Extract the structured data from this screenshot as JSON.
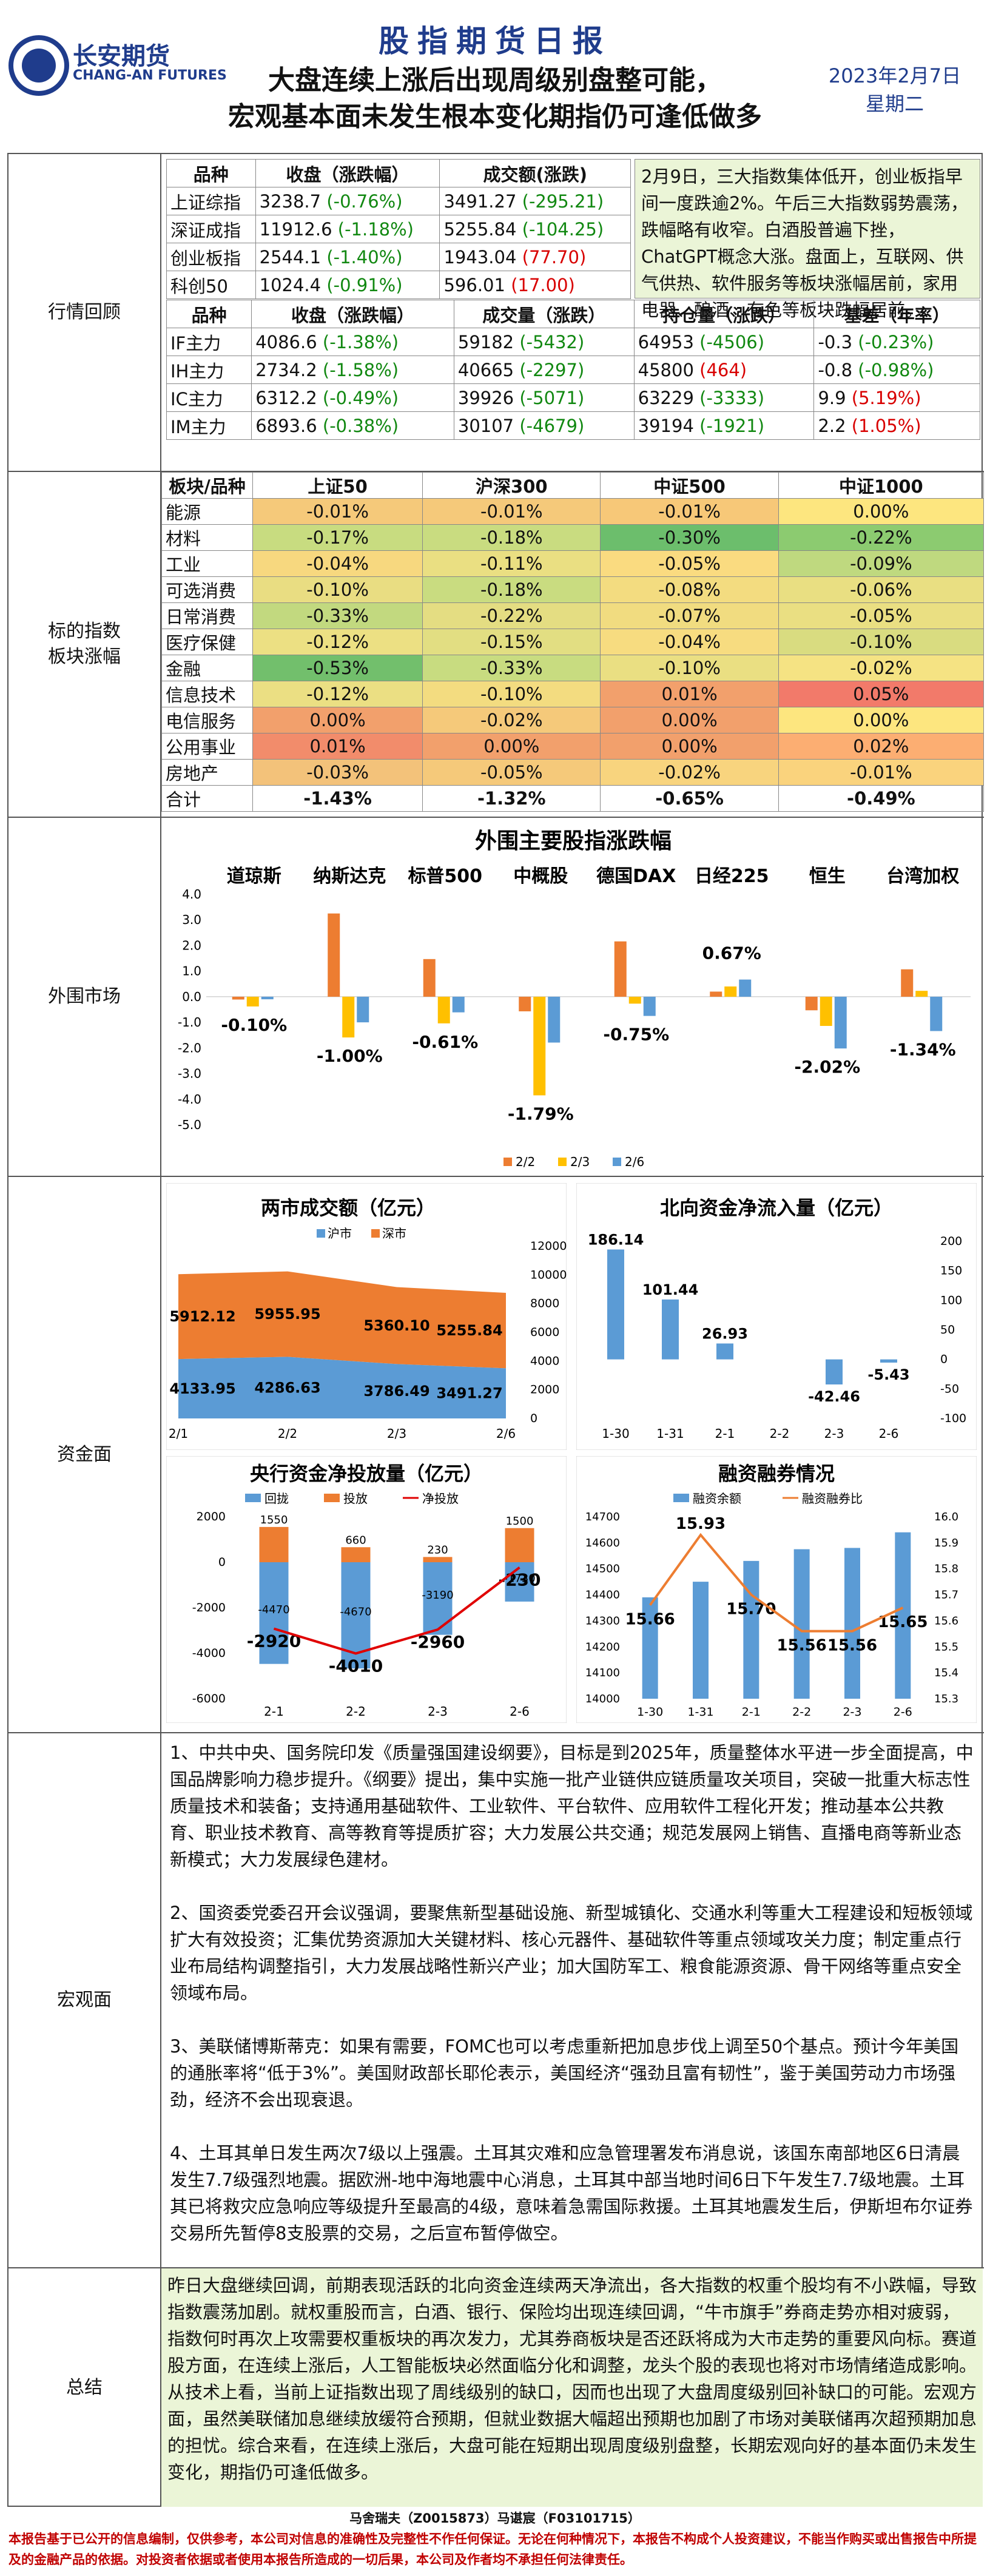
{
  "header": {
    "logo_cn": "长安期货",
    "logo_en": "CHANG-AN FUTURES",
    "report_title": "股指期货日报",
    "headline1": "大盘连续上涨后出现周级别盘整可能，",
    "headline2": "宏观基本面未发生根本变化期指仍可逢低做多",
    "date": "2023年2月7日",
    "weekday": "星期二"
  },
  "labels": {
    "review": "行情回顾",
    "sector": "标的指数\n板块涨幅",
    "foreign": "外围市场",
    "funds": "资金面",
    "macro": "宏观面",
    "summary": "总结"
  },
  "index_table": {
    "headers": [
      "品种",
      "收盘（涨跌幅）",
      "成交额(涨跌)"
    ],
    "rows": [
      [
        "上证综指",
        "3238.7",
        "(-0.76%)",
        "3491.27",
        "(-295.21)",
        "grn",
        "grn"
      ],
      [
        "深证成指",
        "11912.6",
        "(-1.18%)",
        "5255.84",
        "(-104.25)",
        "grn",
        "grn"
      ],
      [
        "创业板指",
        "2544.1",
        "(-1.40%)",
        "1943.04",
        "(77.70)",
        "grn",
        "red"
      ],
      [
        "科创50",
        "1024.4",
        "(-0.91%)",
        "596.01",
        "(17.00)",
        "grn",
        "red"
      ]
    ]
  },
  "review_text": "2月9日，三大指数集体低开，创业板指早间一度跌逾2%。午后三大指数弱势震荡，跌幅略有收窄。白酒股普遍下挫，ChatGPT概念大涨。盘面上，互联网、供气供热、软件服务等板块涨幅居前，家用电器、酿酒、有色等板块跌幅居前。",
  "futures_table": {
    "headers": [
      "品种",
      "收盘（涨跌幅）",
      "成交量（涨跌）",
      "持仓量（涨跌）",
      "基差（年率）"
    ],
    "rows": [
      [
        "IF主力",
        "4086.6",
        "(-1.38%)",
        "59182",
        "(-5432)",
        "64953",
        "(-4506)",
        "-0.3",
        "(-0.23%)",
        "grn",
        "grn",
        "grn",
        "grn"
      ],
      [
        "IH主力",
        "2734.2",
        "(-1.58%)",
        "40665",
        "(-2297)",
        "45800",
        "(464)",
        "-0.8",
        "(-0.98%)",
        "grn",
        "grn",
        "red",
        "grn"
      ],
      [
        "IC主力",
        "6312.2",
        "(-0.49%)",
        "39926",
        "(-5071)",
        "63229",
        "(-3333)",
        "9.9",
        "(5.19%)",
        "grn",
        "grn",
        "grn",
        "red"
      ],
      [
        "IM主力",
        "6893.6",
        "(-0.38%)",
        "30107",
        "(-4679)",
        "39194",
        "(-1921)",
        "2.2",
        "(1.05%)",
        "grn",
        "grn",
        "grn",
        "red"
      ]
    ]
  },
  "sector_table": {
    "headers": [
      "板块/品种",
      "上证50",
      "沪深300",
      "中证500",
      "中证1000"
    ],
    "rows": [
      [
        "能源",
        "-0.01%",
        "-0.01%",
        "-0.01%",
        "0.00%"
      ],
      [
        "材料",
        "-0.17%",
        "-0.18%",
        "-0.30%",
        "-0.22%"
      ],
      [
        "工业",
        "-0.04%",
        "-0.11%",
        "-0.05%",
        "-0.09%"
      ],
      [
        "可选消费",
        "-0.10%",
        "-0.18%",
        "-0.08%",
        "-0.06%"
      ],
      [
        "日常消费",
        "-0.33%",
        "-0.22%",
        "-0.07%",
        "-0.05%"
      ],
      [
        "医疗保健",
        "-0.12%",
        "-0.15%",
        "-0.04%",
        "-0.10%"
      ],
      [
        "金融",
        "-0.53%",
        "-0.33%",
        "-0.10%",
        "-0.02%"
      ],
      [
        "信息技术",
        "-0.12%",
        "-0.10%",
        "0.01%",
        "0.05%"
      ],
      [
        "电信服务",
        "0.00%",
        "-0.02%",
        "0.00%",
        "0.00%"
      ],
      [
        "公用事业",
        "0.01%",
        "0.00%",
        "0.00%",
        "0.02%"
      ],
      [
        "房地产",
        "-0.03%",
        "-0.05%",
        "-0.02%",
        "-0.01%"
      ]
    ],
    "total": [
      "合计",
      "-1.43%",
      "-1.32%",
      "-0.65%",
      "-0.49%"
    ],
    "colors": [
      [
        "#f5c97a",
        "#f5c97a",
        "#f7c878",
        "#fde67f"
      ],
      [
        "#c8dc80",
        "#c9dc80",
        "#6cbe6c",
        "#8ccb70"
      ],
      [
        "#f7d87f",
        "#eadf82",
        "#fadb80",
        "#bfd97f"
      ],
      [
        "#e9dd82",
        "#c9dc80",
        "#f3dc80",
        "#e9df82"
      ],
      [
        "#c2d97f",
        "#e4dd82",
        "#f1dc80",
        "#eadf82"
      ],
      [
        "#ece083",
        "#e2de82",
        "#f7dc80",
        "#d9dc80"
      ],
      [
        "#72bf6c",
        "#c8dc80",
        "#eadf82",
        "#f5e383"
      ],
      [
        "#ebdf83",
        "#f3dc80",
        "#f2a06c",
        "#f27a6a"
      ],
      [
        "#f2a06c",
        "#f5c97a",
        "#f2a06c",
        "#fde67f"
      ],
      [
        "#f28c6b",
        "#f2a06c",
        "#f2a06c",
        "#fcae72"
      ],
      [
        "#f3c27a",
        "#f5c97a",
        "#f8d47e",
        "#fad37d"
      ]
    ]
  },
  "foreign_chart": {
    "chart_data": {
      "type": "bar",
      "title": "外围主要股指涨跌幅",
      "categories": [
        "道琼斯",
        "纳斯达克",
        "标普500",
        "中概股",
        "德国DAX",
        "日经225",
        "恒生",
        "台湾加权"
      ],
      "series": [
        {
          "name": "2/2",
          "values": [
            -0.11,
            3.25,
            1.47,
            -0.57,
            2.16,
            0.2,
            -0.53,
            1.07
          ]
        },
        {
          "name": "2/3",
          "values": [
            -0.38,
            -1.59,
            -1.04,
            -3.85,
            -0.27,
            0.4,
            -1.14,
            0.23
          ]
        },
        {
          "name": "2/6",
          "values": [
            -0.1,
            -1.0,
            -0.61,
            -1.79,
            -0.75,
            0.67,
            -2.02,
            -1.34
          ]
        }
      ],
      "data_labels": [
        "-0.10%",
        "-1.00%",
        "-0.61%",
        "-1.79%",
        "-0.75%",
        "0.67%",
        "-2.02%",
        "-1.34%"
      ],
      "ylim": [
        -5,
        4
      ],
      "yticks": [
        "4.0",
        "3.0",
        "2.0",
        "1.0",
        "0.0",
        "-1.0",
        "-2.0",
        "-3.0",
        "-4.0",
        "-5.0"
      ],
      "colors": [
        "#ed7d31",
        "#ffc000",
        "#5b9bd5"
      ]
    }
  },
  "turnover_chart": {
    "chart_data": {
      "type": "area",
      "title": "两市成交额（亿元）",
      "x": [
        "2/1",
        "2/2",
        "2/3",
        "2/6"
      ],
      "series": [
        {
          "name": "沪市",
          "values": [
            4133.95,
            4286.63,
            3786.49,
            3491.27
          ]
        },
        {
          "name": "深市",
          "values": [
            5912.12,
            5955.95,
            5360.1,
            5255.84
          ]
        }
      ],
      "ylim": [
        0,
        12000
      ],
      "yticks": [
        "12000",
        "10000",
        "8000",
        "6000",
        "4000",
        "2000",
        "0"
      ],
      "colors": [
        "#5b9bd5",
        "#ed7d31"
      ]
    }
  },
  "north_chart": {
    "chart_data": {
      "type": "bar",
      "title": "北向资金净流入量（亿元）",
      "categories": [
        "1-30",
        "1-31",
        "2-1",
        "2-2",
        "2-3",
        "2-6"
      ],
      "values": [
        186.14,
        101.44,
        26.93,
        0,
        -42.46,
        -5.43
      ],
      "labels": [
        "186.14",
        "101.44",
        "26.93",
        "",
        "-42.46",
        "-5.43"
      ],
      "ylim": [
        -100,
        200
      ],
      "yticks": [
        "200",
        "150",
        "100",
        "50",
        "0",
        "-50",
        "-100"
      ],
      "color": "#5b9bd5"
    }
  },
  "pboc_chart": {
    "chart_data": {
      "type": "bar",
      "title": "央行资金净投放量（亿元）",
      "categories": [
        "2-1",
        "2-2",
        "2-3",
        "2-6"
      ],
      "series": [
        {
          "name": "回拢",
          "values": [
            -4470,
            -4670,
            -3190,
            -1730
          ]
        },
        {
          "name": "投放",
          "values": [
            1550,
            660,
            230,
            1500
          ]
        },
        {
          "name": "净投放",
          "values": [
            -2920,
            -4010,
            -2960,
            -230
          ]
        }
      ],
      "withdraw_labels": [
        "-4470",
        "-4670",
        "-3190",
        "-1730"
      ],
      "inject_labels": [
        "1550",
        "660",
        "230",
        "1500"
      ],
      "net_labels": [
        "-2920",
        "-4010",
        "-2960",
        "-230"
      ],
      "ylim": [
        -6000,
        2000
      ],
      "yticks": [
        "2000",
        "0",
        "-2000",
        "-4000",
        "-6000"
      ],
      "colors": [
        "#5b9bd5",
        "#ed7d31",
        "#e00000"
      ]
    }
  },
  "margin_chart": {
    "chart_data": {
      "type": "bar",
      "title": "融资融券情况",
      "categories": [
        "1-30",
        "1-31",
        "2-1",
        "2-2",
        "2-3",
        "2-6"
      ],
      "series": [
        {
          "name": "融资余额",
          "values": [
            14390,
            14450,
            14530,
            14575,
            14580,
            14640
          ]
        },
        {
          "name": "融资融券比",
          "values": [
            15.66,
            15.93,
            15.7,
            15.56,
            15.56,
            15.65
          ]
        }
      ],
      "ratio_labels": [
        "15.66",
        "15.93",
        "15.70",
        "15.56",
        "15.56",
        "15.65"
      ],
      "ylim_left": [
        14000,
        14700
      ],
      "yticks_left": [
        "14700",
        "14600",
        "14500",
        "14400",
        "14300",
        "14200",
        "14100",
        "14000"
      ],
      "ylim_right": [
        15.3,
        16.0
      ],
      "yticks_right": [
        "16.0",
        "15.9",
        "15.8",
        "15.7",
        "15.6",
        "15.5",
        "15.4",
        "15.3"
      ],
      "colors": [
        "#5b9bd5",
        "#ed7d31"
      ]
    }
  },
  "macro": {
    "p1": "1、中共中央、国务院印发《质量强国建设纲要》，目标是到2025年，质量整体水平进一步全面提高，中国品牌影响力稳步提升。《纲要》提出，集中实施一批产业链供应链质量攻关项目，突破一批重大标志性质量技术和装备；支持通用基础软件、工业软件、平台软件、应用软件工程化开发；推动基本公共教育、职业技术教育、高等教育等提质扩容；大力发展公共交通；规范发展网上销售、直播电商等新业态新模式；大力发展绿色建材。",
    "p2": "2、国资委党委召开会议强调，要聚焦新型基础设施、新型城镇化、交通水利等重大工程建设和短板领域扩大有效投资；汇集优势资源加大关键材料、核心元器件、基础软件等重点领域攻关力度；制定重点行业布局结构调整指引，大力发展战略性新兴产业；加大国防军工、粮食能源资源、骨干网络等重点安全领域布局。",
    "p3": "3、美联储博斯蒂克：如果有需要，FOMC也可以考虑重新把加息步伐上调至50个基点。预计今年美国的通胀率将“低于3%”。美国财政部长耶伦表示，美国经济“强劲且富有韧性”，鉴于美国劳动力市场强劲，经济不会出现衰退。",
    "p4": "4、土耳其单日发生两次7级以上强震。土耳其灾难和应急管理署发布消息说，该国东南部地区6日清晨发生7.7级强烈地震。据欧洲-地中海地震中心消息，土耳其中部当地时间6日下午发生7.7级地震。土耳其已将救灾应急响应等级提升至最高的4级，意味着急需国际救援。土耳其地震发生后，伊斯坦布尔证券交易所先暂停8支股票的交易，之后宣布暂停做空。"
  },
  "summary": "昨日大盘继续回调，前期表现活跃的北向资金连续两天净流出，各大指数的权重个股均有不小跌幅，导致指数震荡加剧。就权重股而言，白酒、银行、保险均出现连续回调，“牛市旗手”券商走势亦相对疲弱，指数何时再次上攻需要权重板块的再次发力，尤其券商板块是否还跃将成为大市走势的重要风向标。赛道股方面，在连续上涨后，人工智能板块必然面临分化和调整，龙头个股的表现也将对市场情绪造成影响。从技术上看，当前上证指数出现了周线级别的缺口，因而也出现了大盘周度级别回补缺口的可能。宏观方面，虽然美联储加息继续放缓符合预期，但就业数据大幅超出预期也加剧了市场对美联储再次超预期加息的担忧。综合来看，在连续上涨后，大盘可能在短期出现周度级别盘整，长期宏观向好的基本面仍未发生变化，期指仍可逢低做多。",
  "footer": {
    "analysts": "马舍瑞夫（Z0015873）马谌宸（F03101715）",
    "disclaimer": "本报告基于已公开的信息编制，仅供参考，本公司对信息的准确性及完整性不作任何保证。无论在何种情况下，本报告不构成个人投资建议，不能当作购买或出售报告中所提及的金融产品的依据。对投资者依据或者使用本报告所造成的一切后果，本公司及作者均不承担任何法律责任。"
  }
}
